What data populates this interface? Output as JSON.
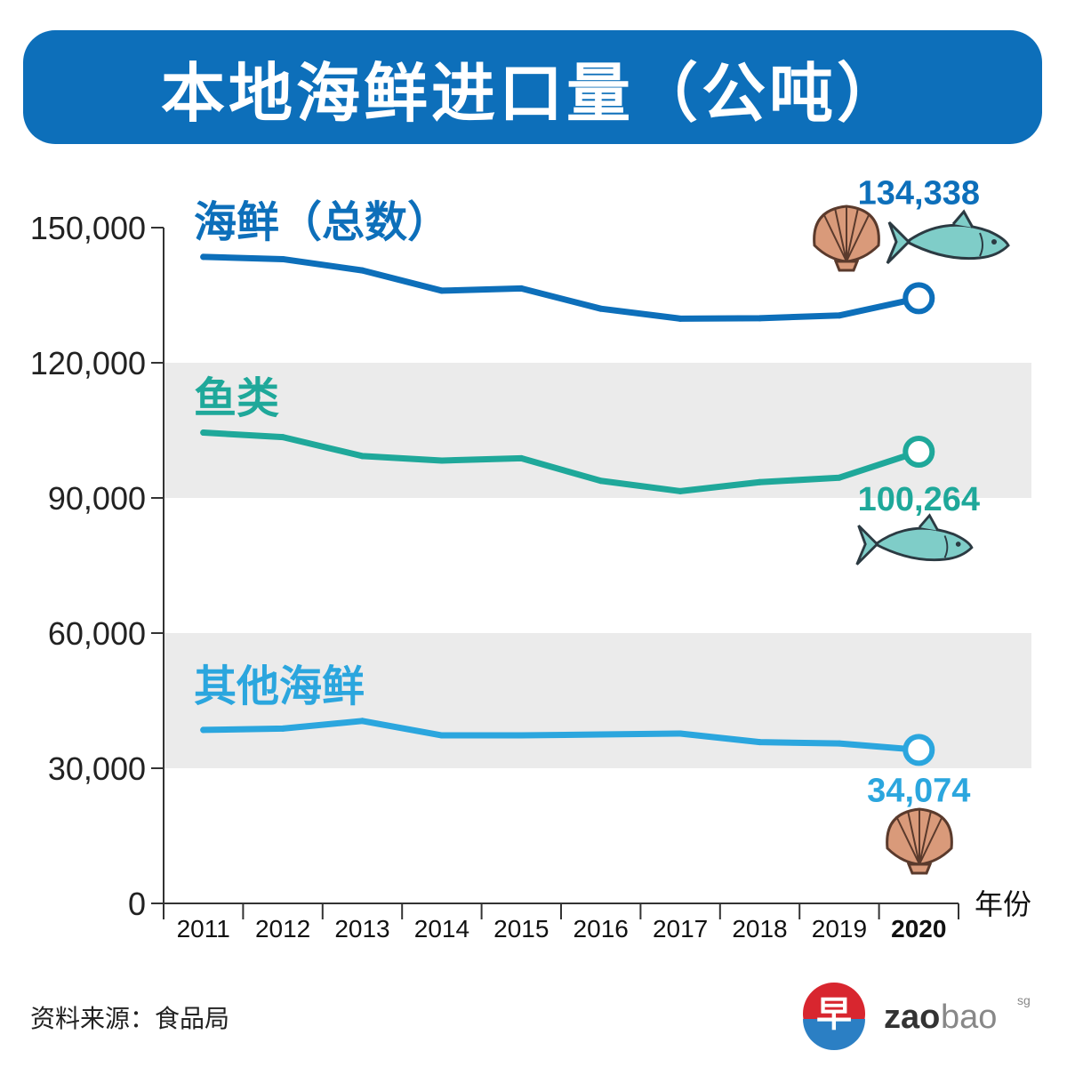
{
  "title": "本地海鲜进口量（公吨）",
  "source": "资料来源：食品局",
  "brand": {
    "mark": "早",
    "name_bold": "zao",
    "name_light": "bao",
    "suffix": "sg"
  },
  "colors": {
    "banner": "#0d6fba",
    "seafood_total": "#0d6fba",
    "fish": "#1fa89a",
    "other_seafood": "#2ba6de",
    "band": "#ebebeb",
    "axis": "#333333"
  },
  "icons": [
    "scallop-icon",
    "fish-icon"
  ],
  "chart_data": {
    "type": "line",
    "categories": [
      "2011",
      "2012",
      "2013",
      "2014",
      "2015",
      "2016",
      "2017",
      "2018",
      "2019",
      "2020"
    ],
    "highlight_category": "2020",
    "ylim": [
      0,
      150000
    ],
    "yticks": [
      0,
      30000,
      60000,
      90000,
      120000,
      150000
    ],
    "ytick_labels": [
      "0",
      "30,000",
      "60,000",
      "90,000",
      "120,000",
      "150,000"
    ],
    "xlabel": "年份",
    "ylabel": "",
    "shaded_bands": [
      [
        30000,
        60000
      ],
      [
        90000,
        120000
      ]
    ],
    "series": [
      {
        "name": "海鲜（总数）",
        "color": "#0d6fba",
        "values": [
          143500,
          143000,
          140500,
          136000,
          136500,
          132000,
          129800,
          129900,
          130500,
          134338
        ],
        "end_label": "134,338",
        "icons": [
          "scallop-icon",
          "fish-icon"
        ]
      },
      {
        "name": "鱼类",
        "color": "#1fa89a",
        "values": [
          104500,
          103500,
          99300,
          98300,
          98800,
          93800,
          91500,
          93500,
          94500,
          100264
        ],
        "end_label": "100,264",
        "icons": [
          "fish-icon"
        ]
      },
      {
        "name": "其他海鲜",
        "color": "#2ba6de",
        "values": [
          38500,
          38800,
          40500,
          37300,
          37300,
          37500,
          37700,
          35800,
          35500,
          34074
        ],
        "end_label": "34,074",
        "icons": [
          "scallop-icon"
        ]
      }
    ]
  }
}
